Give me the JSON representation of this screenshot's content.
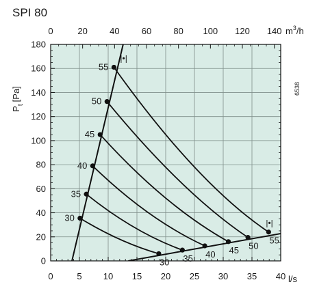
{
  "chart_data": {
    "type": "line",
    "title": "SPI 80",
    "side_code": "6538",
    "ylabel": "Pt [Pa]",
    "ylabel_main": "P",
    "ylabel_sub": "t",
    "ylabel_unit": "[Pa]",
    "xlabel_bottom": "l/s",
    "xlabel_top": "m³/h",
    "xlabel_top_main": "m",
    "xlabel_top_sup": "3",
    "xlabel_top_rest": "/h",
    "x_bottom_lim": [
      0,
      40
    ],
    "x_top_lim": [
      0,
      144
    ],
    "ylim": [
      0,
      180
    ],
    "x_bottom_ticks": [
      "0",
      "5",
      "10",
      "15",
      "20",
      "25",
      "30",
      "35",
      "40"
    ],
    "x_top_ticks": [
      "0",
      "20",
      "40",
      "60",
      "80",
      "100",
      "120",
      "140"
    ],
    "y_ticks": [
      "0",
      "20",
      "40",
      "60",
      "80",
      "100",
      "120",
      "140",
      "160",
      "180"
    ],
    "grid": true,
    "colors": {
      "plot_bg": "#d9ece6",
      "grid": "#7f8f8a",
      "line": "#111111"
    },
    "boundary_min": {
      "marker": "|•|",
      "points": [
        [
          3.7,
          0
        ],
        [
          12.6,
          180
        ]
      ]
    },
    "boundary_max": {
      "marker": "|•|",
      "points": [
        [
          13.5,
          0
        ],
        [
          41.5,
          24
        ]
      ]
    },
    "series": [
      {
        "name": "30",
        "start_label": "30",
        "end_label": "30",
        "points": [
          [
            5.1,
            35.5
          ],
          [
            12.0,
            18.0
          ],
          [
            18.8,
            6.0
          ]
        ]
      },
      {
        "name": "35",
        "start_label": "35",
        "end_label": "35",
        "points": [
          [
            6.2,
            55.5
          ],
          [
            14.5,
            28.0
          ],
          [
            22.9,
            9.0
          ]
        ]
      },
      {
        "name": "40",
        "start_label": "40",
        "end_label": "40",
        "points": [
          [
            7.3,
            79.0
          ],
          [
            17.0,
            40.0
          ],
          [
            26.8,
            12.5
          ]
        ]
      },
      {
        "name": "45",
        "start_label": "45",
        "end_label": "45",
        "points": [
          [
            8.6,
            105.0
          ],
          [
            19.8,
            53.0
          ],
          [
            30.9,
            16.0
          ]
        ]
      },
      {
        "name": "50",
        "start_label": "50",
        "end_label": "50",
        "points": [
          [
            9.8,
            132.5
          ],
          [
            22.5,
            66.0
          ],
          [
            34.3,
            19.5
          ]
        ]
      },
      {
        "name": "55",
        "start_label": "55",
        "end_label": "55",
        "points": [
          [
            11.0,
            161.0
          ],
          [
            25.0,
            78.0
          ],
          [
            37.9,
            24.0
          ]
        ]
      }
    ]
  }
}
